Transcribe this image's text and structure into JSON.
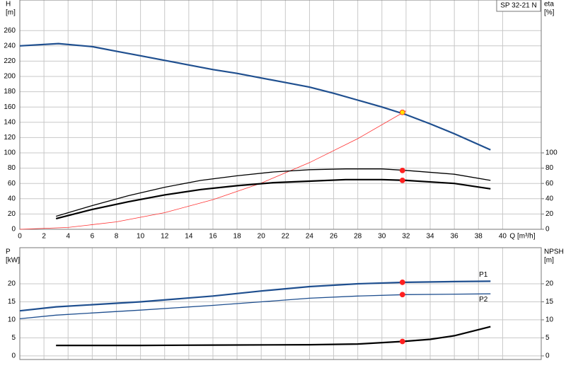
{
  "chart_data": [
    {
      "type": "line",
      "title": "SP 32-21 N",
      "y_label": "H",
      "y_unit": "[m]",
      "y2_label": "eta",
      "y2_unit": "[%]",
      "x_label": "Q [m³/h]",
      "xlim": [
        0,
        43.2
      ],
      "xticks": [
        0,
        2,
        4,
        6,
        8,
        10,
        12,
        14,
        16,
        18,
        20,
        22,
        24,
        26,
        28,
        30,
        32,
        34,
        36,
        38,
        40
      ],
      "ylim": [
        0,
        300
      ],
      "yticks": [
        0,
        20,
        40,
        60,
        80,
        100,
        120,
        140,
        160,
        180,
        200,
        220,
        240,
        260
      ],
      "y2lim": [
        0,
        300
      ],
      "y2ticks": [
        0,
        20,
        40,
        60,
        80,
        100
      ],
      "grid": true,
      "series": [
        {
          "type": "line",
          "style": "thick",
          "color": "#1f4f8f",
          "x": [
            0,
            3.2,
            6,
            8,
            10,
            12,
            14,
            16,
            18,
            20,
            22,
            24,
            26,
            28,
            30,
            32,
            34,
            36,
            39
          ],
          "values": [
            240,
            243,
            239,
            233,
            227,
            221,
            215,
            209,
            204,
            198,
            192,
            186,
            178,
            169,
            160,
            150,
            138,
            125,
            104
          ]
        },
        {
          "type": "line",
          "style": "hair",
          "color": "#ff3030",
          "x": [
            0,
            4,
            8,
            12,
            16,
            20,
            24,
            28,
            32
          ],
          "values": [
            0,
            2.4,
            9.7,
            21.8,
            38.8,
            60.5,
            87.2,
            118.6,
            155
          ]
        },
        {
          "type": "line",
          "style": "thin",
          "color": "#000000",
          "axis": "y2",
          "x": [
            3,
            6,
            9,
            12,
            15,
            18,
            21,
            24,
            27,
            30,
            32,
            36,
            39
          ],
          "values": [
            17,
            31,
            44,
            55,
            64,
            70,
            75,
            78,
            79,
            79,
            77,
            72,
            64
          ]
        },
        {
          "type": "line",
          "style": "thick",
          "color": "#000000",
          "axis": "y2",
          "x": [
            3,
            6,
            9,
            12,
            15,
            18,
            21,
            24,
            27,
            30,
            32,
            36,
            39
          ],
          "values": [
            14,
            26,
            36,
            45,
            52,
            57,
            61,
            63,
            65,
            65,
            64,
            60,
            53
          ]
        },
        {
          "type": "point",
          "color": "#ffe000",
          "x": [
            31.7
          ],
          "values": [
            153
          ]
        },
        {
          "type": "point",
          "color": "#ff2020",
          "axis": "y2",
          "x": [
            31.7,
            31.7
          ],
          "values": [
            77,
            64
          ]
        }
      ]
    },
    {
      "type": "line",
      "y_label": "P",
      "y_unit": "[kW]",
      "y2_label": "NPSH",
      "y2_unit": "[m]",
      "xlim": [
        0,
        43.2
      ],
      "ylim": [
        -1,
        30
      ],
      "yticks": [
        0,
        5,
        10,
        15,
        20
      ],
      "y2lim": [
        -1,
        30
      ],
      "y2ticks": [
        0,
        5,
        10,
        15,
        20
      ],
      "grid": true,
      "series": [
        {
          "name": "P1",
          "type": "line",
          "style": "thick",
          "color": "#1f4f8f",
          "x": [
            0,
            3,
            10,
            16,
            20,
            24,
            28,
            32,
            36,
            39
          ],
          "values": [
            12.5,
            13.6,
            15,
            16.6,
            18,
            19.2,
            20,
            20.4,
            20.6,
            20.7
          ]
        },
        {
          "name": "P2",
          "type": "line",
          "style": "thin",
          "color": "#1f4f8f",
          "x": [
            0,
            3,
            10,
            16,
            20,
            24,
            28,
            32,
            39
          ],
          "values": [
            10.3,
            11.3,
            12.7,
            14,
            15,
            16,
            16.6,
            17,
            17.2
          ]
        },
        {
          "type": "line",
          "style": "thick",
          "color": "#000000",
          "axis": "y2",
          "x": [
            3,
            10,
            16,
            24,
            28,
            31.7,
            34,
            36,
            39
          ],
          "values": [
            2.9,
            2.9,
            3,
            3.1,
            3.3,
            4,
            4.6,
            5.6,
            8.1
          ]
        },
        {
          "type": "point",
          "color": "#ff2020",
          "x": [
            31.7,
            31.7
          ],
          "values": [
            20.4,
            17
          ]
        },
        {
          "type": "point",
          "color": "#ff2020",
          "axis": "y2",
          "x": [
            31.7
          ],
          "values": [
            4
          ]
        }
      ]
    }
  ]
}
